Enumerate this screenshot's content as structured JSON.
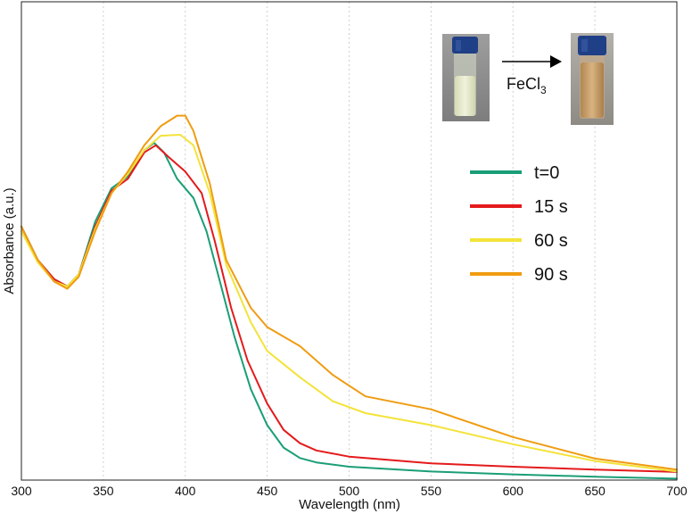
{
  "chart_data": {
    "type": "line",
    "title": "",
    "xlabel": "Wavelength (nm)",
    "ylabel": "Absorbance (a.u.)",
    "xlim": [
      300,
      700
    ],
    "ylim": [
      0,
      1.0
    ],
    "x_ticks": [
      300,
      350,
      400,
      450,
      500,
      550,
      600,
      650,
      700
    ],
    "y_tick_labels": false,
    "grid": "vertical-dotted",
    "legend_position": "right",
    "series": [
      {
        "name": "t=0",
        "color": "#1a9e77",
        "points": [
          [
            300,
            0.53
          ],
          [
            310,
            0.46
          ],
          [
            320,
            0.42
          ],
          [
            328,
            0.405
          ],
          [
            335,
            0.43
          ],
          [
            345,
            0.54
          ],
          [
            355,
            0.61
          ],
          [
            365,
            0.635
          ],
          [
            375,
            0.69
          ],
          [
            381,
            0.705
          ],
          [
            387,
            0.685
          ],
          [
            395,
            0.63
          ],
          [
            405,
            0.59
          ],
          [
            413,
            0.52
          ],
          [
            420,
            0.43
          ],
          [
            430,
            0.3
          ],
          [
            440,
            0.19
          ],
          [
            450,
            0.115
          ],
          [
            460,
            0.068
          ],
          [
            470,
            0.046
          ],
          [
            480,
            0.037
          ],
          [
            500,
            0.028
          ],
          [
            550,
            0.018
          ],
          [
            600,
            0.012
          ],
          [
            650,
            0.007
          ],
          [
            700,
            0.003
          ]
        ]
      },
      {
        "name": "15 s",
        "color": "#e41a1c",
        "points": [
          [
            300,
            0.53
          ],
          [
            310,
            0.46
          ],
          [
            320,
            0.42
          ],
          [
            328,
            0.405
          ],
          [
            335,
            0.43
          ],
          [
            345,
            0.53
          ],
          [
            355,
            0.605
          ],
          [
            365,
            0.63
          ],
          [
            375,
            0.685
          ],
          [
            382,
            0.7
          ],
          [
            390,
            0.675
          ],
          [
            400,
            0.645
          ],
          [
            410,
            0.6
          ],
          [
            418,
            0.5
          ],
          [
            428,
            0.36
          ],
          [
            438,
            0.25
          ],
          [
            450,
            0.16
          ],
          [
            460,
            0.105
          ],
          [
            470,
            0.077
          ],
          [
            480,
            0.062
          ],
          [
            500,
            0.049
          ],
          [
            550,
            0.035
          ],
          [
            600,
            0.028
          ],
          [
            650,
            0.022
          ],
          [
            700,
            0.017
          ]
        ]
      },
      {
        "name": "60 s",
        "color": "#f3e33a",
        "points": [
          [
            300,
            0.52
          ],
          [
            310,
            0.455
          ],
          [
            320,
            0.415
          ],
          [
            328,
            0.405
          ],
          [
            335,
            0.43
          ],
          [
            345,
            0.525
          ],
          [
            355,
            0.6
          ],
          [
            365,
            0.64
          ],
          [
            375,
            0.69
          ],
          [
            385,
            0.72
          ],
          [
            397,
            0.722
          ],
          [
            405,
            0.7
          ],
          [
            415,
            0.6
          ],
          [
            425,
            0.45
          ],
          [
            440,
            0.33
          ],
          [
            450,
            0.27
          ],
          [
            470,
            0.215
          ],
          [
            490,
            0.165
          ],
          [
            510,
            0.14
          ],
          [
            550,
            0.115
          ],
          [
            600,
            0.075
          ],
          [
            650,
            0.04
          ],
          [
            700,
            0.018
          ]
        ]
      },
      {
        "name": "90 s",
        "color": "#ef9c12",
        "points": [
          [
            300,
            0.53
          ],
          [
            310,
            0.46
          ],
          [
            320,
            0.415
          ],
          [
            328,
            0.4
          ],
          [
            335,
            0.425
          ],
          [
            345,
            0.52
          ],
          [
            355,
            0.6
          ],
          [
            365,
            0.645
          ],
          [
            375,
            0.7
          ],
          [
            385,
            0.74
          ],
          [
            395,
            0.762
          ],
          [
            400,
            0.762
          ],
          [
            405,
            0.73
          ],
          [
            415,
            0.62
          ],
          [
            425,
            0.46
          ],
          [
            440,
            0.36
          ],
          [
            450,
            0.32
          ],
          [
            470,
            0.28
          ],
          [
            490,
            0.22
          ],
          [
            510,
            0.175
          ],
          [
            550,
            0.148
          ],
          [
            600,
            0.09
          ],
          [
            650,
            0.045
          ],
          [
            700,
            0.022
          ]
        ]
      }
    ],
    "inset": {
      "arrow_label": "FeCl3",
      "vial_before_color": "#e8ecd0",
      "vial_after_color": "#c9a472",
      "cap_color": "#1f3f86"
    }
  }
}
